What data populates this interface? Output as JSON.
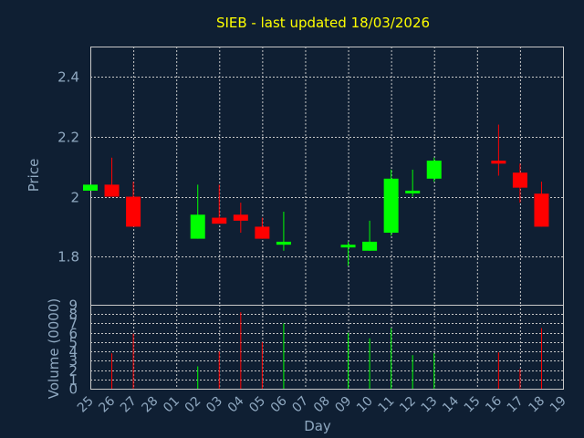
{
  "chart_data": {
    "type": "candlestick",
    "title": "SIEB - last updated 18/03/2026",
    "xlabel": "Day",
    "ylabel_price": "Price",
    "ylabel_volume": "Volume (0000)",
    "x_ticks": [
      "25",
      "26",
      "27",
      "28",
      "01",
      "02",
      "03",
      "04",
      "05",
      "06",
      "07",
      "08",
      "09",
      "10",
      "11",
      "12",
      "13",
      "14",
      "15",
      "16",
      "17",
      "18",
      "19"
    ],
    "price_ylim": [
      1.64,
      2.5
    ],
    "price_ticks": [
      1.8,
      2.0,
      2.2,
      2.4
    ],
    "price_tick_labels": [
      "1.8",
      "2",
      "2.2",
      "2.4"
    ],
    "volume_ylim": [
      0,
      9
    ],
    "volume_ticks": [
      0,
      1,
      2,
      3,
      4,
      5,
      6,
      7,
      8,
      9
    ],
    "grid": true,
    "up_color": "#00ff00",
    "down_color": "#ff0000",
    "candles": [
      {
        "day": "25",
        "open": 2.02,
        "high": 2.04,
        "low": 2.02,
        "close": 2.04,
        "volume": 0
      },
      {
        "day": "26",
        "open": 2.04,
        "high": 2.13,
        "low": 2.0,
        "close": 2.0,
        "volume": 3.8
      },
      {
        "day": "27",
        "open": 2.0,
        "high": 2.05,
        "low": 1.9,
        "close": 1.9,
        "volume": 5.9
      },
      {
        "day": "02",
        "open": 1.86,
        "high": 2.04,
        "low": 1.86,
        "close": 1.94,
        "volume": 2.4
      },
      {
        "day": "03",
        "open": 1.93,
        "high": 2.04,
        "low": 1.91,
        "close": 1.91,
        "volume": 4.0
      },
      {
        "day": "04",
        "open": 1.94,
        "high": 1.98,
        "low": 1.88,
        "close": 1.92,
        "volume": 8.2
      },
      {
        "day": "05",
        "open": 1.9,
        "high": 1.93,
        "low": 1.86,
        "close": 1.86,
        "volume": 5.0
      },
      {
        "day": "06",
        "open": 1.84,
        "high": 1.95,
        "low": 1.82,
        "close": 1.85,
        "volume": 7.0
      },
      {
        "day": "09",
        "open": 1.84,
        "high": 1.85,
        "low": 1.77,
        "close": 1.84,
        "volume": 6.0
      },
      {
        "day": "10",
        "open": 1.82,
        "high": 1.92,
        "low": 1.82,
        "close": 1.85,
        "volume": 5.4
      },
      {
        "day": "11",
        "open": 1.88,
        "high": 2.09,
        "low": 1.87,
        "close": 2.06,
        "volume": 6.5
      },
      {
        "day": "12",
        "open": 2.02,
        "high": 2.09,
        "low": 2.0,
        "close": 2.02,
        "volume": 3.6
      },
      {
        "day": "13",
        "open": 2.06,
        "high": 2.13,
        "low": 2.05,
        "close": 2.12,
        "volume": 3.8
      },
      {
        "day": "16",
        "open": 2.12,
        "high": 2.24,
        "low": 2.07,
        "close": 2.11,
        "volume": 3.9
      },
      {
        "day": "17",
        "open": 2.08,
        "high": 2.11,
        "low": 1.98,
        "close": 2.03,
        "volume": 2.1
      },
      {
        "day": "18",
        "open": 2.01,
        "high": 2.05,
        "low": 1.9,
        "close": 1.9,
        "volume": 6.5
      }
    ]
  }
}
